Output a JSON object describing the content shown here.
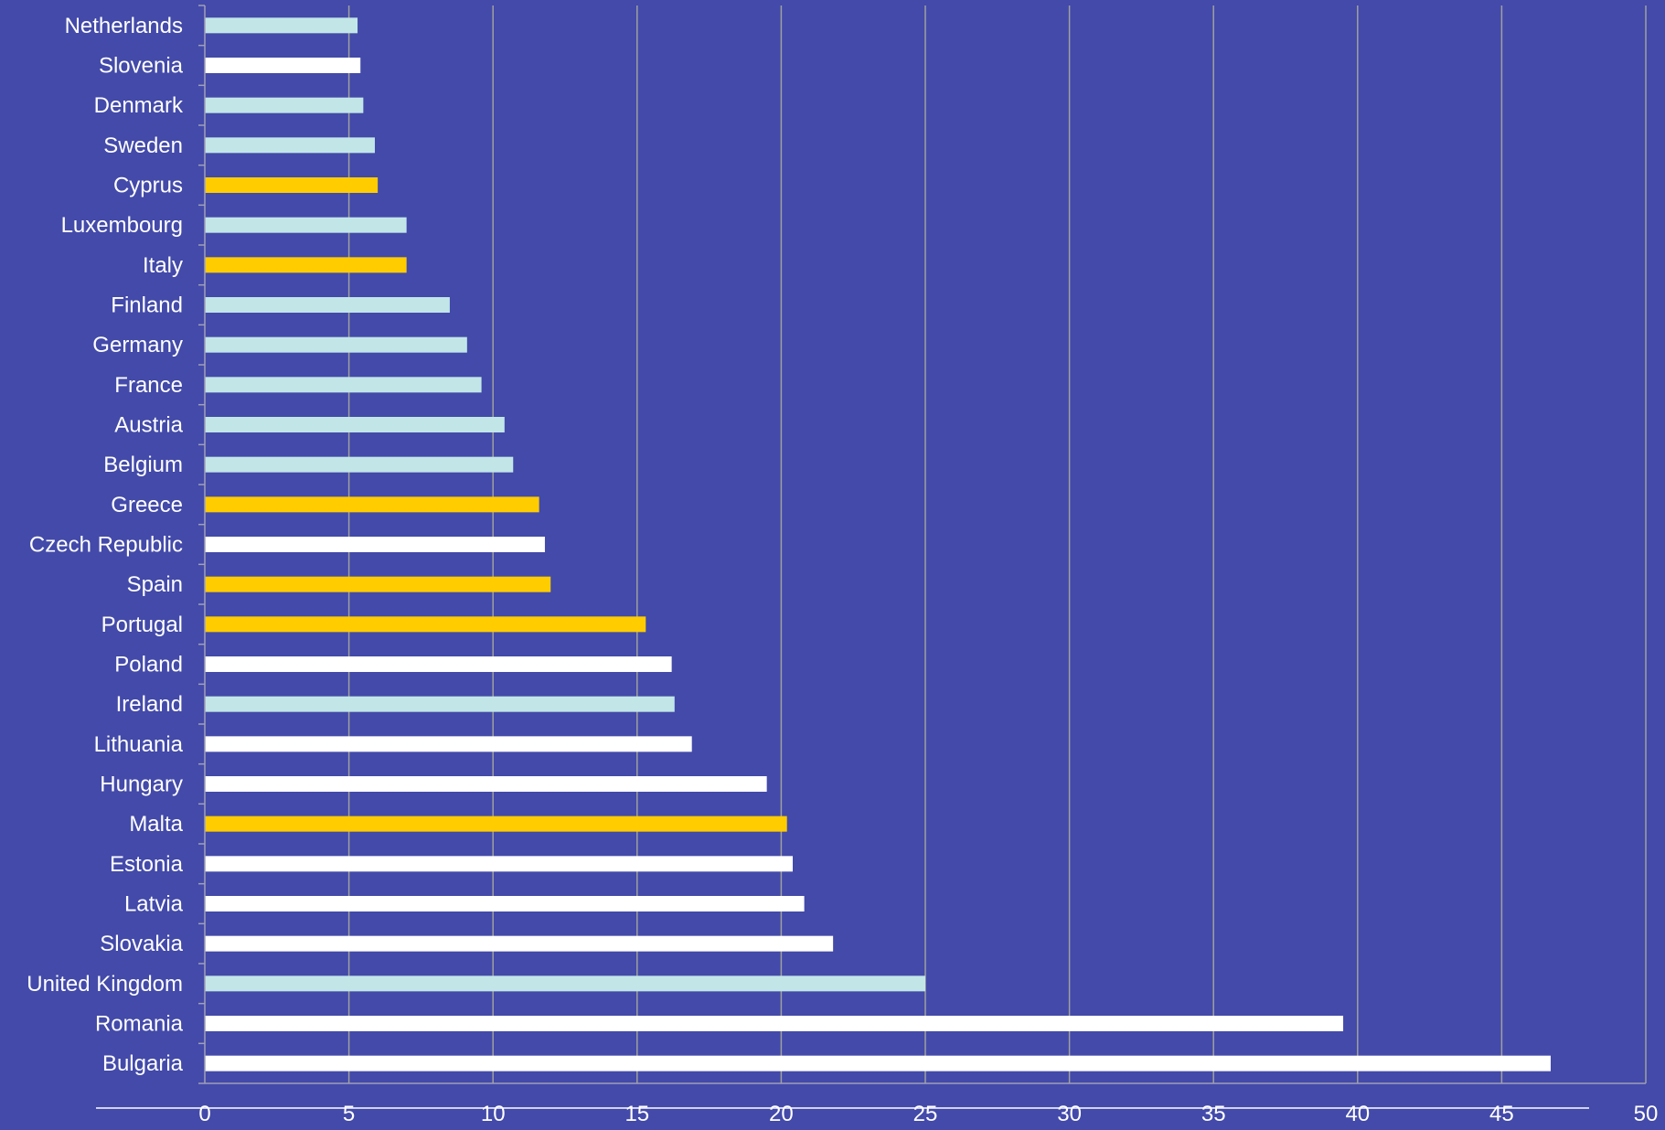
{
  "chart_data": {
    "type": "bar",
    "orientation": "horizontal",
    "categories": [
      "Netherlands",
      "Slovenia",
      "Denmark",
      "Sweden",
      "Cyprus",
      "Luxembourg",
      "Italy",
      "Finland",
      "Germany",
      "France",
      "Austria",
      "Belgium",
      "Greece",
      "Czech Republic",
      "Spain",
      "Portugal",
      "Poland",
      "Ireland",
      "Lithuania",
      "Hungary",
      "Malta",
      "Estonia",
      "Latvia",
      "Slovakia",
      "United Kingdom",
      "Romania",
      "Bulgaria"
    ],
    "values": [
      5.3,
      5.4,
      5.5,
      5.9,
      6.0,
      7.0,
      7.0,
      8.5,
      9.1,
      9.6,
      10.4,
      10.7,
      11.6,
      11.8,
      12.0,
      15.3,
      16.2,
      16.3,
      16.9,
      19.5,
      20.2,
      20.4,
      20.8,
      21.8,
      25.0,
      39.5,
      46.7
    ],
    "bar_colors": [
      "#c2e6e8",
      "#ffffff",
      "#c2e6e8",
      "#c2e6e8",
      "#ffcc00",
      "#c2e6e8",
      "#ffcc00",
      "#c2e6e8",
      "#c2e6e8",
      "#c2e6e8",
      "#c2e6e8",
      "#c2e6e8",
      "#ffcc00",
      "#ffffff",
      "#ffcc00",
      "#ffcc00",
      "#ffffff",
      "#c2e6e8",
      "#ffffff",
      "#ffffff",
      "#ffcc00",
      "#ffffff",
      "#ffffff",
      "#ffffff",
      "#c2e6e8",
      "#ffffff",
      "#ffffff"
    ],
    "xlim": [
      0,
      50
    ],
    "xticks": [
      0,
      5,
      10,
      15,
      20,
      25,
      30,
      35,
      40,
      45,
      50
    ],
    "grid": true,
    "legend": false,
    "title": "",
    "xlabel": "",
    "ylabel": ""
  },
  "colors": {
    "background": "#434aa9",
    "gridline": "#a0a0a0",
    "axis": "#a0a0b8",
    "text": "#ffffff"
  }
}
